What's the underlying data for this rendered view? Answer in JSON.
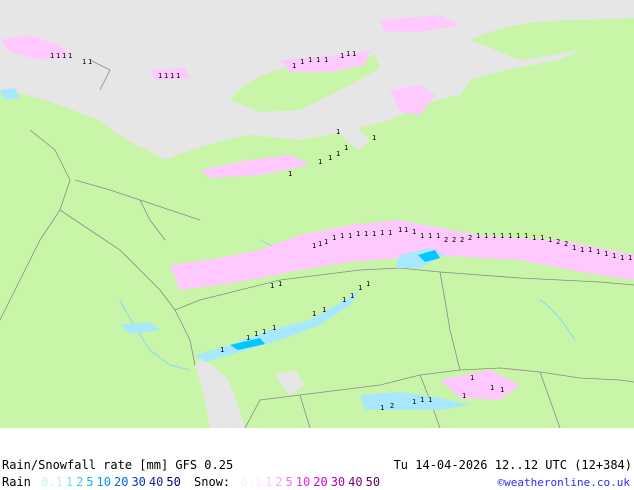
{
  "map": {
    "colors": {
      "sea": "#e6e6e6",
      "land": "#c8f5a8",
      "border": "#8a8a8a",
      "rain_light": "#a8e8ff",
      "rain_med": "#00c8ff",
      "snow_light": "#ffc8ff",
      "snow_med": "#f0a0f0"
    },
    "precip_marker_glyph": "1",
    "precip_marker_glyph_2": "2"
  },
  "footer": {
    "title": "Rain/Snowfall rate [mm] GFS 0.25",
    "datetime": "Tu 14-04-2026 12..12 UTC (12+384)",
    "rain_label": "Rain",
    "snow_label": "Snow:",
    "rain_scale": [
      {
        "v": "0.1",
        "c": "#c8f0ff"
      },
      {
        "v": "1",
        "c": "#7ad8ff"
      },
      {
        "v": "2",
        "c": "#40c8ff"
      },
      {
        "v": "5",
        "c": "#00b4ff"
      },
      {
        "v": "10",
        "c": "#0096ff"
      },
      {
        "v": "20",
        "c": "#0064dc"
      },
      {
        "v": "30",
        "c": "#003cb4"
      },
      {
        "v": "40",
        "c": "#1e1e96"
      },
      {
        "v": "50",
        "c": "#000078"
      }
    ],
    "snow_scale": [
      {
        "v": "0.1",
        "c": "#ffe6ff"
      },
      {
        "v": "1",
        "c": "#ffc8ff"
      },
      {
        "v": "2",
        "c": "#ffa0ff"
      },
      {
        "v": "5",
        "c": "#ff64ff"
      },
      {
        "v": "10",
        "c": "#f028f0"
      },
      {
        "v": "20",
        "c": "#d200d2"
      },
      {
        "v": "30",
        "c": "#aa00aa"
      },
      {
        "v": "40",
        "c": "#820082"
      },
      {
        "v": "50",
        "c": "#5a005a"
      }
    ],
    "credit": "©weatheronline.co.uk"
  }
}
